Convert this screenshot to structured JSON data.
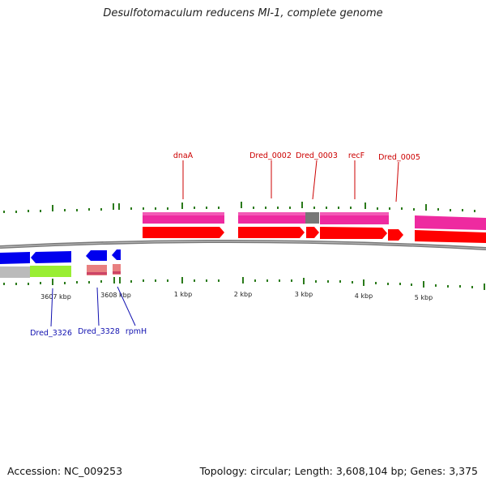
{
  "title": "Desulfotomaculum reducens MI-1, complete genome",
  "accession": "Accession: NC_009253",
  "summary": "Topology: circular; Length: 3,608,104 bp; Genes: 3,375",
  "ticks": [
    "3607 kbp",
    "3608 kbp",
    "1 kbp",
    "2 kbp",
    "3 kbp",
    "4 kbp",
    "5 kbp"
  ],
  "forward_genes": [
    "dnaA",
    "Dred_0002",
    "Dred_0003",
    "recF",
    "Dred_0005"
  ],
  "reverse_genes": [
    "Dred_3326",
    "Dred_3328",
    "rpmH"
  ],
  "colors": {
    "forward_label": "#cc0000",
    "reverse_label": "#1010b0",
    "cds_forward": "#ff0000",
    "gene_forward": "#ee2aa0",
    "cds_reverse": "#0000ee",
    "gene_reverse": "#e88080",
    "gc_skew": "#99ee33",
    "gray_feature": "#777777",
    "tick": "#2a7a1a",
    "backbone": "#888888"
  }
}
